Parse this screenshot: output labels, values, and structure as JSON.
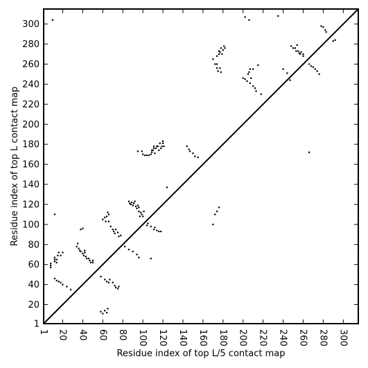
{
  "chart_data": {
    "type": "scatter",
    "title": "",
    "xlabel": "Residue index of top L/5 contact map",
    "ylabel": "Residue index of top L contact map",
    "xlim": [
      1,
      315
    ],
    "ylim": [
      1,
      315
    ],
    "x_ticks": [
      1,
      20,
      40,
      60,
      80,
      100,
      120,
      140,
      160,
      180,
      200,
      220,
      240,
      260,
      280,
      300
    ],
    "y_ticks": [
      1,
      20,
      40,
      60,
      80,
      100,
      120,
      140,
      160,
      180,
      200,
      220,
      240,
      260,
      280,
      300
    ],
    "grid": false,
    "diagonal_line": true,
    "marker": "square",
    "marker_color": "#000000",
    "series": [
      {
        "region": "above-diagonal (top L contact map)",
        "points": [
          [
            10,
            304
          ],
          [
            202,
            307
          ],
          [
            206,
            304
          ],
          [
            235,
            308
          ],
          [
            8,
            57
          ],
          [
            8,
            59
          ],
          [
            8,
            61
          ],
          [
            12,
            63
          ],
          [
            12,
            65
          ],
          [
            12,
            67
          ],
          [
            14,
            62
          ],
          [
            14,
            65
          ],
          [
            15,
            69
          ],
          [
            16,
            72
          ],
          [
            18,
            69
          ],
          [
            20,
            72
          ],
          [
            34,
            78
          ],
          [
            35,
            81
          ],
          [
            36,
            76
          ],
          [
            37,
            74
          ],
          [
            38,
            73
          ],
          [
            38,
            95
          ],
          [
            40,
            96
          ],
          [
            40,
            71
          ],
          [
            41,
            69
          ],
          [
            42,
            74
          ],
          [
            42,
            72
          ],
          [
            43,
            68
          ],
          [
            44,
            66
          ],
          [
            46,
            66
          ],
          [
            47,
            64
          ],
          [
            48,
            62
          ],
          [
            50,
            62
          ],
          [
            50,
            64
          ],
          [
            60,
            105
          ],
          [
            62,
            107
          ],
          [
            63,
            103
          ],
          [
            64,
            108
          ],
          [
            65,
            112
          ],
          [
            66,
            110
          ],
          [
            66,
            103
          ],
          [
            68,
            98
          ],
          [
            70,
            95
          ],
          [
            71,
            93
          ],
          [
            72,
            91
          ],
          [
            73,
            95
          ],
          [
            75,
            92
          ],
          [
            76,
            88
          ],
          [
            78,
            89
          ],
          [
            86,
            123
          ],
          [
            87,
            121
          ],
          [
            88,
            120
          ],
          [
            89,
            122
          ],
          [
            90,
            119
          ],
          [
            91,
            121
          ],
          [
            92,
            123
          ],
          [
            93,
            118
          ],
          [
            94,
            116
          ],
          [
            95,
            119
          ],
          [
            96,
            113
          ],
          [
            96,
            117
          ],
          [
            97,
            108
          ],
          [
            98,
            112
          ],
          [
            99,
            110
          ],
          [
            100,
            108
          ],
          [
            101,
            113
          ],
          [
            104,
            99
          ],
          [
            105,
            101
          ],
          [
            108,
            98
          ],
          [
            111,
            95
          ],
          [
            112,
            97
          ],
          [
            114,
            94
          ],
          [
            116,
            93
          ],
          [
            118,
            93
          ],
          [
            95,
            173
          ],
          [
            99,
            173
          ],
          [
            100,
            170
          ],
          [
            102,
            169
          ],
          [
            104,
            169
          ],
          [
            106,
            169
          ],
          [
            108,
            170
          ],
          [
            109,
            172
          ],
          [
            109,
            174
          ],
          [
            110,
            174
          ],
          [
            111,
            176
          ],
          [
            111,
            178
          ],
          [
            112,
            171
          ],
          [
            113,
            176
          ],
          [
            114,
            178
          ],
          [
            115,
            178
          ],
          [
            116,
            174
          ],
          [
            117,
            181
          ],
          [
            118,
            176
          ],
          [
            119,
            178
          ],
          [
            120,
            181
          ],
          [
            120,
            183
          ],
          [
            121,
            178
          ],
          [
            170,
            265
          ],
          [
            172,
            260
          ],
          [
            174,
            268
          ],
          [
            174,
            256
          ],
          [
            174,
            260
          ],
          [
            175,
            253
          ],
          [
            176,
            273
          ],
          [
            176,
            270
          ],
          [
            177,
            256
          ],
          [
            177,
            272
          ],
          [
            178,
            276
          ],
          [
            178,
            252
          ],
          [
            179,
            270
          ],
          [
            180,
            274
          ],
          [
            181,
            278
          ],
          [
            182,
            276
          ],
          [
            200,
            246
          ],
          [
            202,
            245
          ],
          [
            204,
            243
          ],
          [
            205,
            250
          ],
          [
            206,
            252
          ],
          [
            207,
            255
          ],
          [
            207,
            241
          ],
          [
            208,
            246
          ],
          [
            210,
            238
          ],
          [
            210,
            255
          ],
          [
            212,
            236
          ],
          [
            213,
            233
          ],
          [
            215,
            259
          ],
          [
            218,
            230
          ],
          [
            240,
            255
          ],
          [
            244,
            251
          ],
          [
            247,
            244
          ],
          [
            248,
            278
          ],
          [
            250,
            276
          ],
          [
            252,
            276
          ],
          [
            253,
            273
          ],
          [
            254,
            279
          ],
          [
            255,
            273
          ],
          [
            256,
            271
          ],
          [
            257,
            270
          ],
          [
            258,
            272
          ],
          [
            260,
            268
          ],
          [
            260,
            270
          ],
          [
            266,
            260
          ],
          [
            268,
            258
          ],
          [
            270,
            257
          ],
          [
            272,
            255
          ],
          [
            274,
            253
          ],
          [
            276,
            250
          ],
          [
            278,
            298
          ],
          [
            280,
            297
          ],
          [
            282,
            294
          ],
          [
            283,
            292
          ],
          [
            290,
            283
          ],
          [
            292,
            284
          ]
        ]
      },
      {
        "region": "below-diagonal (top L/5 contact map)",
        "points": [
          [
            12,
            110
          ],
          [
            58,
            13
          ],
          [
            60,
            11
          ],
          [
            62,
            14
          ],
          [
            64,
            12
          ],
          [
            65,
            16
          ],
          [
            58,
            48
          ],
          [
            62,
            45
          ],
          [
            64,
            43
          ],
          [
            66,
            42
          ],
          [
            67,
            45
          ],
          [
            70,
            42
          ],
          [
            72,
            39
          ],
          [
            73,
            37
          ],
          [
            75,
            36
          ],
          [
            76,
            38
          ],
          [
            12,
            46
          ],
          [
            14,
            44
          ],
          [
            16,
            43
          ],
          [
            18,
            42
          ],
          [
            20,
            40
          ],
          [
            24,
            38
          ],
          [
            28,
            35
          ],
          [
            82,
            78
          ],
          [
            86,
            75
          ],
          [
            90,
            73
          ],
          [
            94,
            70
          ],
          [
            96,
            67
          ],
          [
            108,
            66
          ],
          [
            144,
            178
          ],
          [
            146,
            175
          ],
          [
            147,
            173
          ],
          [
            150,
            171
          ],
          [
            152,
            168
          ],
          [
            155,
            167
          ],
          [
            124,
            137
          ],
          [
            170,
            100
          ],
          [
            172,
            110
          ],
          [
            174,
            113
          ],
          [
            176,
            117
          ],
          [
            266,
            172
          ]
        ]
      }
    ]
  }
}
